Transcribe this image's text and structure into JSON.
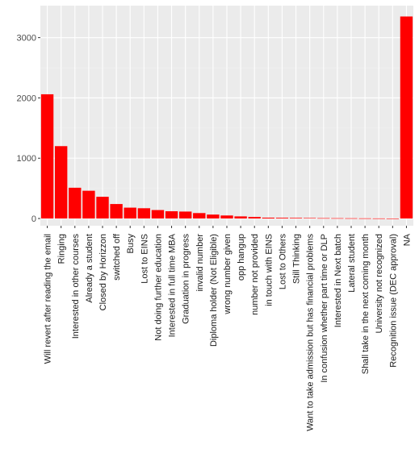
{
  "chart_data": {
    "type": "bar",
    "title": "",
    "xlabel": "",
    "ylabel": "",
    "ylim": [
      -120,
      3530
    ],
    "yticks": [
      0,
      1000,
      2000,
      3000
    ],
    "ytick_labels": [
      "0",
      "1000",
      "2000",
      "3000"
    ],
    "grid": true,
    "legend": "none",
    "colors": {
      "bar": "#ff0000",
      "panel": "#ebebeb",
      "grid_major": "#ffffff",
      "grid_minor": "#f2f2f2",
      "tick_text": "#4d4d4d",
      "axis_tick": "#333333"
    },
    "categories": [
      "Will revert after reading the email",
      "Ringing",
      "Interested in other courses",
      "Already a student",
      "Closed by Horizzon",
      "switched off",
      "Busy",
      "Lost to EINS",
      "Not doing further education",
      "Interested  in full time MBA",
      "Graduation in progress",
      "invalid number",
      "Diploma holder (Not Eligible)",
      "wrong number given",
      "opp hangup",
      "number not provided",
      "in touch with EINS",
      "Lost to Others",
      "Still Thinking",
      "Want to take admission but has financial problems",
      "In confusion whether part time or DLP",
      "Interested in Next batch",
      "Lateral student",
      "Shall take in the next coming month",
      "University not recognized",
      "Recognition issue (DEC approval)",
      "NA"
    ],
    "values": [
      2060,
      1200,
      510,
      460,
      360,
      240,
      180,
      170,
      140,
      120,
      115,
      90,
      65,
      50,
      35,
      25,
      14,
      12,
      10,
      8,
      6,
      5,
      4,
      3,
      2,
      1,
      3350
    ]
  }
}
